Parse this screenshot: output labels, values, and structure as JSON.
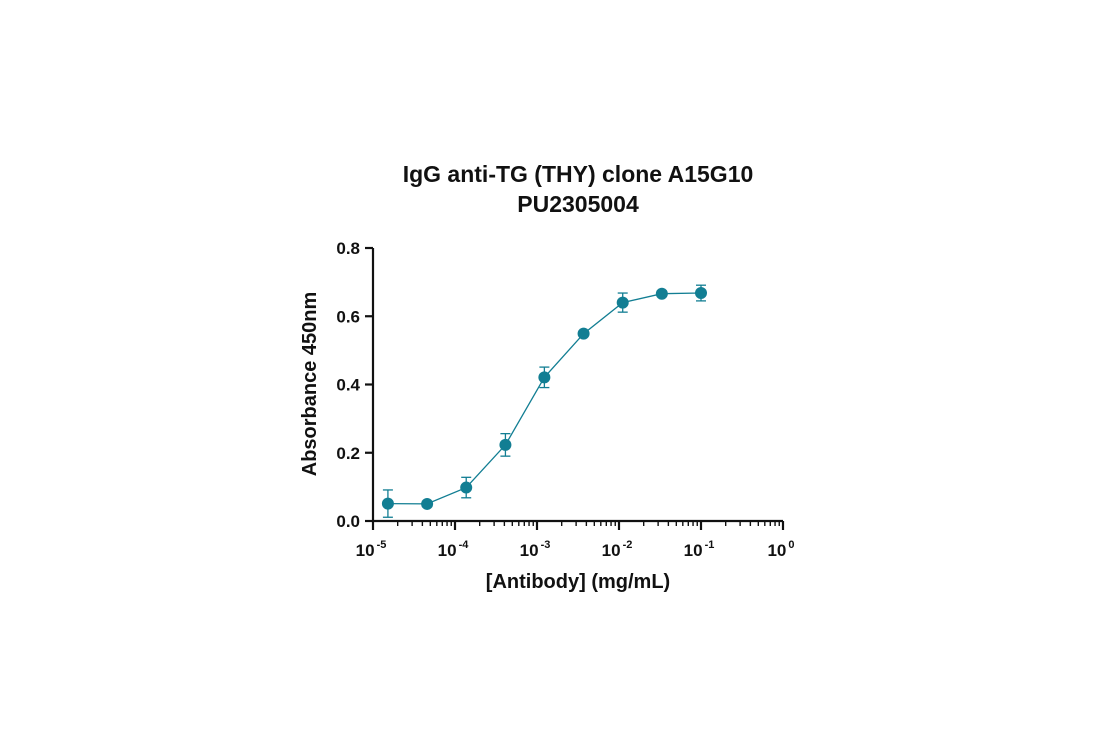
{
  "chart_data": {
    "type": "scatter",
    "title": "IgG anti-TG (THY) clone A15G10",
    "subtitle": "PU2305004",
    "xlabel": "[Antibody] (mg/mL)",
    "ylabel": "Absorbance 450nm",
    "x_scale": "log",
    "xlim": [
      1e-05,
      1
    ],
    "ylim": [
      0,
      0.8
    ],
    "x_ticks": [
      {
        "base": "10",
        "exp": "-5",
        "value": 1e-05
      },
      {
        "base": "10",
        "exp": "-4",
        "value": 0.0001
      },
      {
        "base": "10",
        "exp": "-3",
        "value": 0.001
      },
      {
        "base": "10",
        "exp": "-2",
        "value": 0.01
      },
      {
        "base": "10",
        "exp": "-1",
        "value": 0.1
      },
      {
        "base": "10",
        "exp": "0",
        "value": 1
      }
    ],
    "y_ticks": [
      "0.0",
      "0.2",
      "0.4",
      "0.6",
      "0.8"
    ],
    "grid": false,
    "series": [
      {
        "color": "#127e93",
        "x": [
          1.52e-05,
          4.57e-05,
          0.000137,
          0.000412,
          0.00123,
          0.0037,
          0.0111,
          0.0333,
          0.1
        ],
        "y": [
          0.051,
          0.05,
          0.098,
          0.223,
          0.421,
          0.549,
          0.64,
          0.666,
          0.668
        ],
        "error": [
          0.04,
          0.004,
          0.03,
          0.033,
          0.03,
          0.006,
          0.028,
          0.008,
          0.023
        ]
      }
    ]
  }
}
